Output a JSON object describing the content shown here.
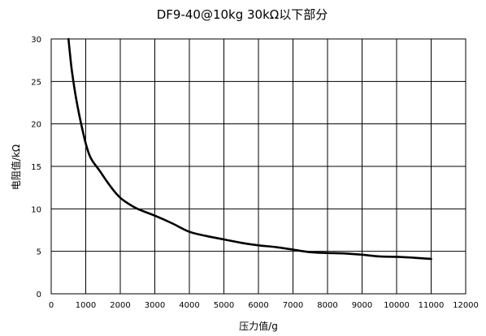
{
  "chart_data": {
    "type": "line",
    "title": "DF9-40@10kg 30kΩ以下部分",
    "xlabel": "压力值/g",
    "ylabel": "电阻值/kΩ",
    "xlim": [
      0,
      12000
    ],
    "ylim": [
      0,
      30
    ],
    "x_ticks": [
      "0",
      "1000",
      "2000",
      "3000",
      "4000",
      "5000",
      "6000",
      "7000",
      "8000",
      "9000",
      "10000",
      "11000",
      "12000"
    ],
    "y_ticks": [
      "0",
      "5",
      "10",
      "15",
      "20",
      "25",
      "30"
    ],
    "grid": true,
    "legend": "none",
    "line_color": "#000000",
    "series": [
      {
        "x": [
          500,
          550,
          600,
          700,
          800,
          900,
          1000,
          1100,
          1200,
          1400,
          1600,
          1800,
          2000,
          2200,
          2500,
          3000,
          3500,
          4000,
          4500,
          5000,
          5500,
          6000,
          6500,
          7000,
          7500,
          8000,
          8500,
          9000,
          9500,
          10000,
          10500,
          11000
        ],
        "y": [
          30,
          28,
          26.2,
          23.5,
          21.3,
          19.4,
          17.7,
          16.4,
          15.6,
          14.5,
          13.3,
          12.2,
          11.3,
          10.7,
          10.0,
          9.2,
          8.3,
          7.3,
          6.8,
          6.4,
          6.0,
          5.7,
          5.5,
          5.2,
          4.9,
          4.8,
          4.75,
          4.6,
          4.4,
          4.35,
          4.25,
          4.1
        ]
      }
    ]
  }
}
